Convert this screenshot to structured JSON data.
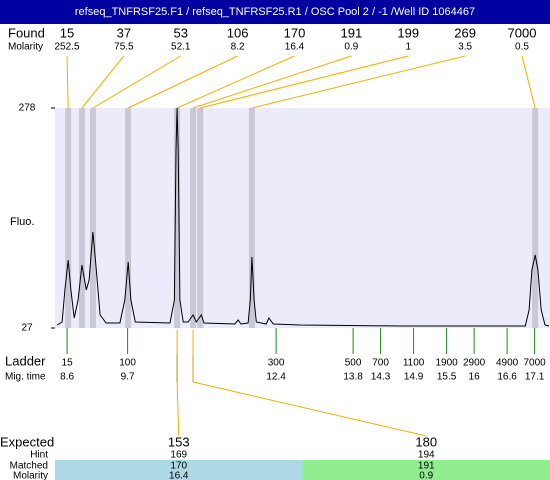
{
  "header": {
    "title": "refseq_TNFRSF25.F1 / refseq_TNFRSF25.R1 / OSC Pool 2 / -1 /Well ID 1064467"
  },
  "found": {
    "label": "Found",
    "sub_label": "Molarity",
    "peaks": [
      {
        "size": 15,
        "molarity": 252.5,
        "time": 8.62
      },
      {
        "size": 37,
        "molarity": 75.5,
        "time": 8.87
      },
      {
        "size": 53,
        "molarity": 52.1,
        "time": 9.07
      },
      {
        "size": 106,
        "molarity": 8.2,
        "time": 9.71
      },
      {
        "size": 170,
        "molarity": 16.4,
        "time": 10.6
      },
      {
        "size": 191,
        "molarity": 0.9,
        "time": 10.89
      },
      {
        "size": 199,
        "molarity": 1,
        "time": 11.02
      },
      {
        "size": 269,
        "molarity": 3.5,
        "time": 11.96
      },
      {
        "size": 7000,
        "molarity": 0.5,
        "time": 17.11
      }
    ]
  },
  "plot": {
    "y_label": "Fluo.",
    "ylim": [
      27,
      278
    ],
    "yticks": [
      27,
      278
    ],
    "xlim": [
      8.38,
      17.38
    ],
    "trace": {
      "x": [
        8.42,
        8.51,
        8.56,
        8.62,
        8.67,
        8.73,
        8.8,
        8.87,
        8.95,
        9.0,
        9.07,
        9.13,
        9.2,
        9.31,
        9.56,
        9.65,
        9.71,
        9.76,
        9.84,
        10.47,
        10.55,
        10.58,
        10.6,
        10.62,
        10.65,
        10.71,
        10.8,
        10.85,
        10.89,
        10.95,
        11.0,
        11.04,
        11.09,
        11.65,
        11.71,
        11.76,
        11.89,
        11.93,
        11.96,
        12.0,
        12.04,
        12.22,
        12.27,
        12.35,
        12.84,
        14.65,
        16.93,
        17.0,
        17.05,
        17.11,
        17.16,
        17.22,
        17.29,
        17.36
      ],
      "y": [
        30.4,
        33.8,
        70.4,
        104.6,
        70.4,
        38.4,
        59,
        98.9,
        70.4,
        81.8,
        136.5,
        93.2,
        41.8,
        32.7,
        32.7,
        59,
        102.3,
        59,
        33.8,
        32.7,
        59,
        230.1,
        278,
        230.1,
        59,
        33.8,
        33.8,
        38.4,
        41.8,
        33.8,
        38.4,
        41.8,
        32.7,
        31.6,
        36.1,
        31.6,
        32.7,
        59,
        108,
        59,
        33.8,
        31.6,
        38.4,
        31.6,
        30.4,
        29.3,
        29.3,
        47.5,
        93.2,
        110.3,
        93.2,
        47.5,
        30.4,
        29.3
      ]
    }
  },
  "ladder": {
    "label": "Ladder",
    "sub_label": "Mig. time",
    "peaks": [
      {
        "size": 15,
        "time": 8.6
      },
      {
        "size": 100,
        "time": 9.7
      },
      {
        "size": 300,
        "time": 12.4
      },
      {
        "size": 500,
        "time": 13.8
      },
      {
        "size": 700,
        "time": 14.3
      },
      {
        "size": 1100,
        "time": 14.9
      },
      {
        "size": 1900,
        "time": 15.5
      },
      {
        "size": 2900,
        "time": 16
      },
      {
        "size": 4900,
        "time": 16.6
      },
      {
        "size": 7000,
        "time": 17.1
      }
    ]
  },
  "expected": {
    "labels": [
      "Expected",
      "Hint",
      "Matched",
      "Molarity"
    ],
    "items": [
      {
        "size": 153,
        "hint": 169,
        "matched": 170,
        "molarity": 16.4,
        "color": "#add8e6"
      },
      {
        "size": 180,
        "hint": 194,
        "matched": 191,
        "molarity": 0.9,
        "color": "#90ee90"
      }
    ]
  }
}
